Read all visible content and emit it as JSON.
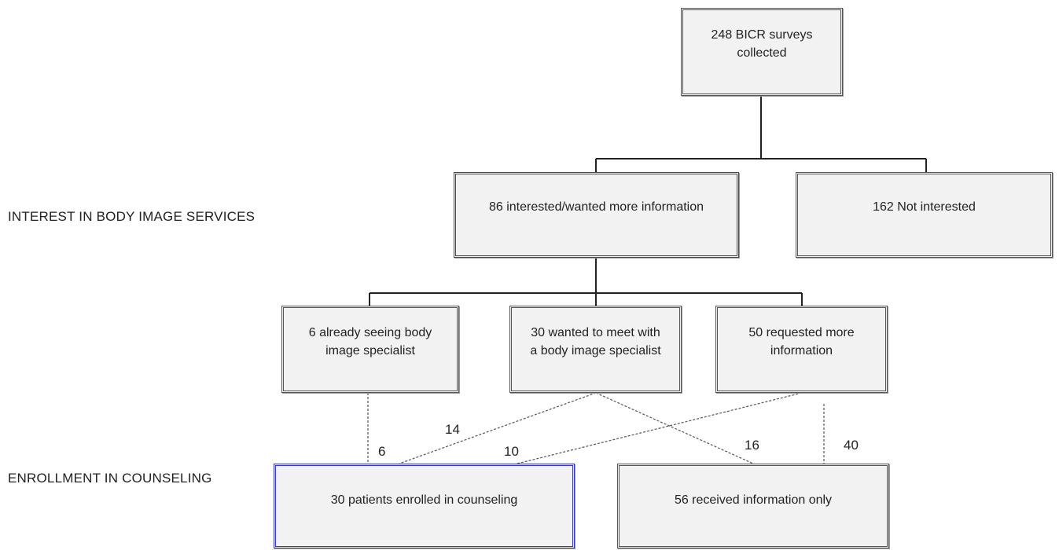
{
  "side_labels": {
    "interest": "INTEREST IN BODY IMAGE SERVICES",
    "enrollment": "ENROLLMENT IN COUNSELING"
  },
  "nodes": {
    "surveys": "248 BICR surveys\ncollected",
    "interested": "86 interested/wanted more information",
    "not_interested": "162 Not interested",
    "already_seeing": "6 already seeing body\nimage specialist",
    "wanted_meet": "30 wanted to meet with\na body image specialist",
    "requested_info": "50 requested more\ninformation",
    "enrolled": "30 patients enrolled in counseling",
    "info_only": "56 received information only"
  },
  "flow_counts": {
    "already_to_enrolled": "6",
    "meet_to_enrolled": "14",
    "info_to_enrolled": "10",
    "meet_to_info_only": "16",
    "info_to_info_only": "40"
  },
  "colors": {
    "box_fill": "#f2f2f2",
    "box_border": "#555555",
    "highlight_border": "#3a3ab0"
  }
}
